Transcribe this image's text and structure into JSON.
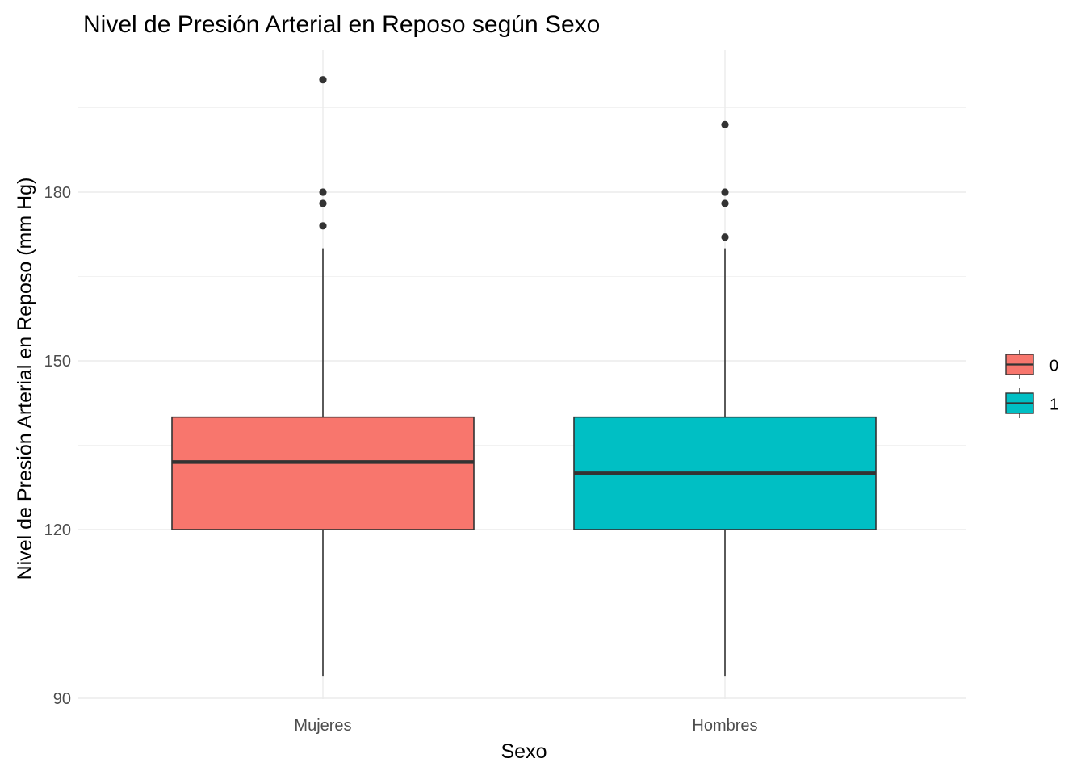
{
  "chart_data": {
    "type": "boxplot",
    "title": "Nivel de Presión Arterial en Reposo según Sexo",
    "xlabel": "Sexo",
    "ylabel": "Nivel de Presión Arterial en Reposo (mm Hg)",
    "ylim": [
      89,
      199
    ],
    "yticks": [
      90,
      120,
      150,
      180
    ],
    "grid": true,
    "categories": [
      "Mujeres",
      "Hombres"
    ],
    "legend": {
      "position": "right",
      "entries": [
        "0",
        "1"
      ]
    },
    "boxes": [
      {
        "category": "Mujeres",
        "group": "0",
        "color": "#F8766D",
        "whisker_low": 94,
        "q1": 120,
        "median": 132,
        "q3": 140,
        "whisker_high": 170,
        "outliers": [
          200,
          180,
          178,
          174
        ]
      },
      {
        "category": "Hombres",
        "group": "1",
        "color": "#00BFC4",
        "whisker_low": 94,
        "q1": 120,
        "median": 130,
        "q3": 140,
        "whisker_high": 170,
        "outliers": [
          192,
          180,
          178,
          172
        ]
      }
    ]
  }
}
